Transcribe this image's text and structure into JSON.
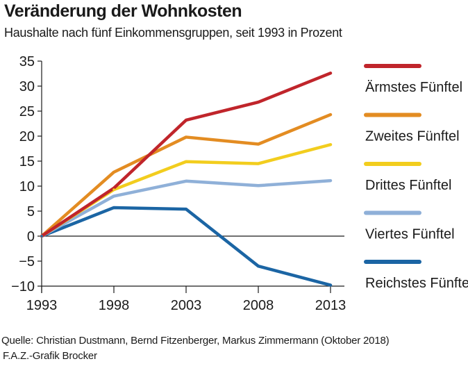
{
  "header": {
    "title": "Veränderung der Wohnkosten",
    "subtitle": "Haushalte nach fünf Einkommensgruppen, seit 1993 in Prozent"
  },
  "footer": {
    "source": "Quelle: Christian Dustmann, Bernd Fitzenberger, Markus Zimmermann (Oktober 2018)",
    "credit": "F.A.Z.-Grafik Brocker"
  },
  "chart_data": {
    "type": "line",
    "title": "Veränderung der Wohnkosten",
    "subtitle": "Haushalte nach fünf Einkommensgruppen, seit 1993 in Prozent",
    "x": [
      1993,
      1998,
      2003,
      2008,
      2013
    ],
    "x_tick_labels": [
      "1993",
      "1998",
      "2003",
      "2008",
      "2013"
    ],
    "y_ticks": [
      35,
      30,
      25,
      20,
      15,
      10,
      5,
      0,
      -5,
      -10
    ],
    "y_tick_labels": [
      "35",
      "30",
      "25",
      "20",
      "15",
      "10",
      "5",
      "0",
      "−5",
      "−10"
    ],
    "ylim": [
      -10,
      35
    ],
    "grid": "horizontal lines at y = 0 and y = -10 only",
    "legend_position": "right",
    "series": [
      {
        "name": "Ärmstes Fünftel",
        "color": "#c0252b",
        "values": [
          0,
          9.6,
          23.2,
          26.8,
          32.6
        ]
      },
      {
        "name": "Zweites Fünftel",
        "color": "#e38c22",
        "values": [
          0,
          12.8,
          19.8,
          18.4,
          24.3
        ]
      },
      {
        "name": "Drittes Fünftel",
        "color": "#f2cd1e",
        "values": [
          0,
          9.3,
          14.9,
          14.5,
          18.3
        ]
      },
      {
        "name": "Viertes Fünftel",
        "color": "#8fb0d8",
        "values": [
          0,
          8.0,
          11.0,
          10.1,
          11.1
        ]
      },
      {
        "name": "Reichstes Fünftel",
        "color": "#1b65a4",
        "values": [
          0,
          5.7,
          5.4,
          -6.0,
          -9.8
        ]
      }
    ]
  }
}
